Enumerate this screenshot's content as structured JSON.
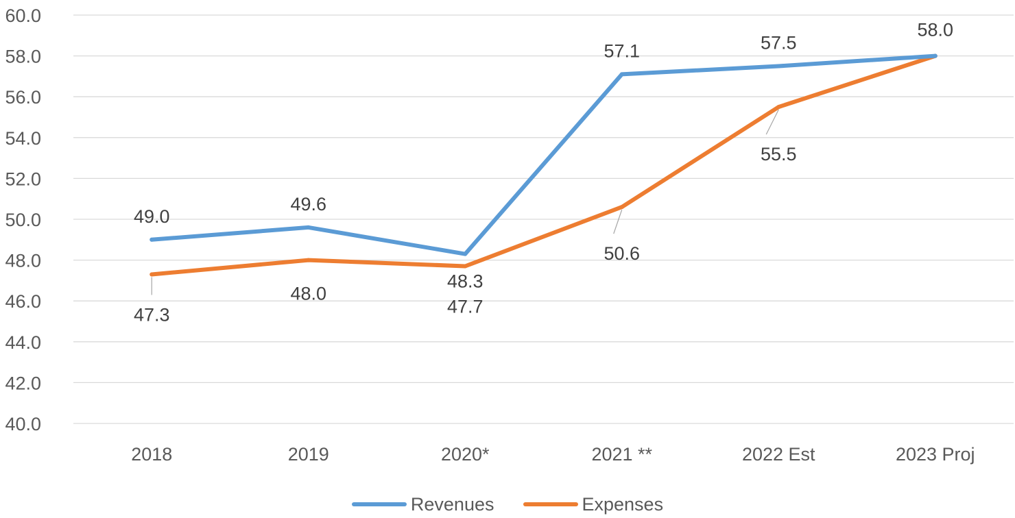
{
  "chart_data": {
    "type": "line",
    "title": "",
    "xlabel": "",
    "ylabel": "",
    "categories": [
      "2018",
      "2019",
      "2020*",
      "2021 **",
      "2022 Est",
      "2023 Proj"
    ],
    "ylim": [
      40,
      60
    ],
    "yticks": [
      "40.0",
      "42.0",
      "44.0",
      "46.0",
      "48.0",
      "50.0",
      "52.0",
      "54.0",
      "56.0",
      "58.0",
      "60.0"
    ],
    "grid": true,
    "legend_position": "bottom",
    "series": [
      {
        "name": "Revenues",
        "color": "#5B9BD5",
        "values": [
          49.0,
          49.6,
          48.3,
          57.1,
          57.5,
          58.0
        ],
        "labels": [
          "49.0",
          "49.6",
          "48.3",
          "57.1",
          "57.5",
          "58.0"
        ]
      },
      {
        "name": "Expenses",
        "color": "#ED7D31",
        "values": [
          47.3,
          48.0,
          47.7,
          50.6,
          55.5,
          58.0
        ],
        "labels": [
          "47.3",
          "48.0",
          "47.7",
          "50.6",
          "55.5",
          ""
        ]
      }
    ]
  }
}
